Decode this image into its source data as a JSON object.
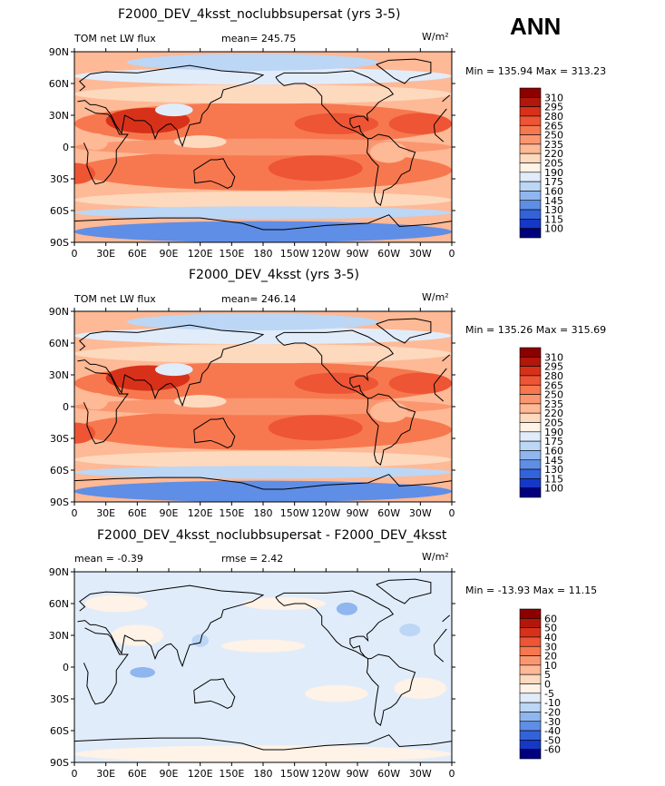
{
  "season": "ANN",
  "units": "W/m²",
  "lat_labels": [
    "90N",
    "60N",
    "30N",
    "0",
    "30S",
    "60S",
    "90S"
  ],
  "lon_labels": [
    "0",
    "30E",
    "60E",
    "90E",
    "120E",
    "150E",
    "180",
    "150W",
    "120W",
    "90W",
    "60W",
    "30W",
    "0"
  ],
  "panels": [
    {
      "title": "F2000_DEV_4ksst_noclubbsupersat (yrs 3-5)",
      "left_label": "TOM net LW flux",
      "center_label": "mean= 245.75",
      "min_max": "Min = 135.94 Max = 313.23",
      "levels": [
        "310",
        "295",
        "280",
        "265",
        "250",
        "235",
        "220",
        "205",
        "190",
        "175",
        "160",
        "145",
        "130",
        "115",
        "100"
      ],
      "colors": [
        "#8c0000",
        "#b2170b",
        "#d8311a",
        "#ee5535",
        "#f7784f",
        "#fb9770",
        "#feb996",
        "#fdd9be",
        "#fff2e6",
        "#e1ecfa",
        "#bcd6f5",
        "#8fb6ee",
        "#5f8ee6",
        "#3363da",
        "#1538c6",
        "#00007e"
      ]
    },
    {
      "title": "F2000_DEV_4ksst (yrs 3-5)",
      "left_label": "TOM net LW flux",
      "center_label": "mean= 246.14",
      "min_max": "Min = 135.26 Max = 315.69",
      "levels": [
        "310",
        "295",
        "280",
        "265",
        "250",
        "235",
        "220",
        "205",
        "190",
        "175",
        "160",
        "145",
        "130",
        "115",
        "100"
      ],
      "colors": [
        "#8c0000",
        "#b2170b",
        "#d8311a",
        "#ee5535",
        "#f7784f",
        "#fb9770",
        "#feb996",
        "#fdd9be",
        "#fff2e6",
        "#e1ecfa",
        "#bcd6f5",
        "#8fb6ee",
        "#5f8ee6",
        "#3363da",
        "#1538c6",
        "#00007e"
      ]
    },
    {
      "title": "F2000_DEV_4ksst_noclubbsupersat - F2000_DEV_4ksst",
      "left_label": "mean = -0.39",
      "center_label": "rmse = 2.42",
      "min_max": "Min = -13.93 Max = 11.15",
      "levels": [
        "60",
        "50",
        "40",
        "30",
        "20",
        "10",
        "5",
        "0",
        "-5",
        "-10",
        "-20",
        "-30",
        "-40",
        "-50",
        "-60"
      ],
      "colors": [
        "#8c0000",
        "#b2170b",
        "#d8311a",
        "#ee5535",
        "#f7784f",
        "#fb9770",
        "#feb996",
        "#fdd9be",
        "#fff2e6",
        "#e1ecfa",
        "#bcd6f5",
        "#8fb6ee",
        "#5f8ee6",
        "#3363da",
        "#1538c6",
        "#00007e"
      ]
    }
  ]
}
